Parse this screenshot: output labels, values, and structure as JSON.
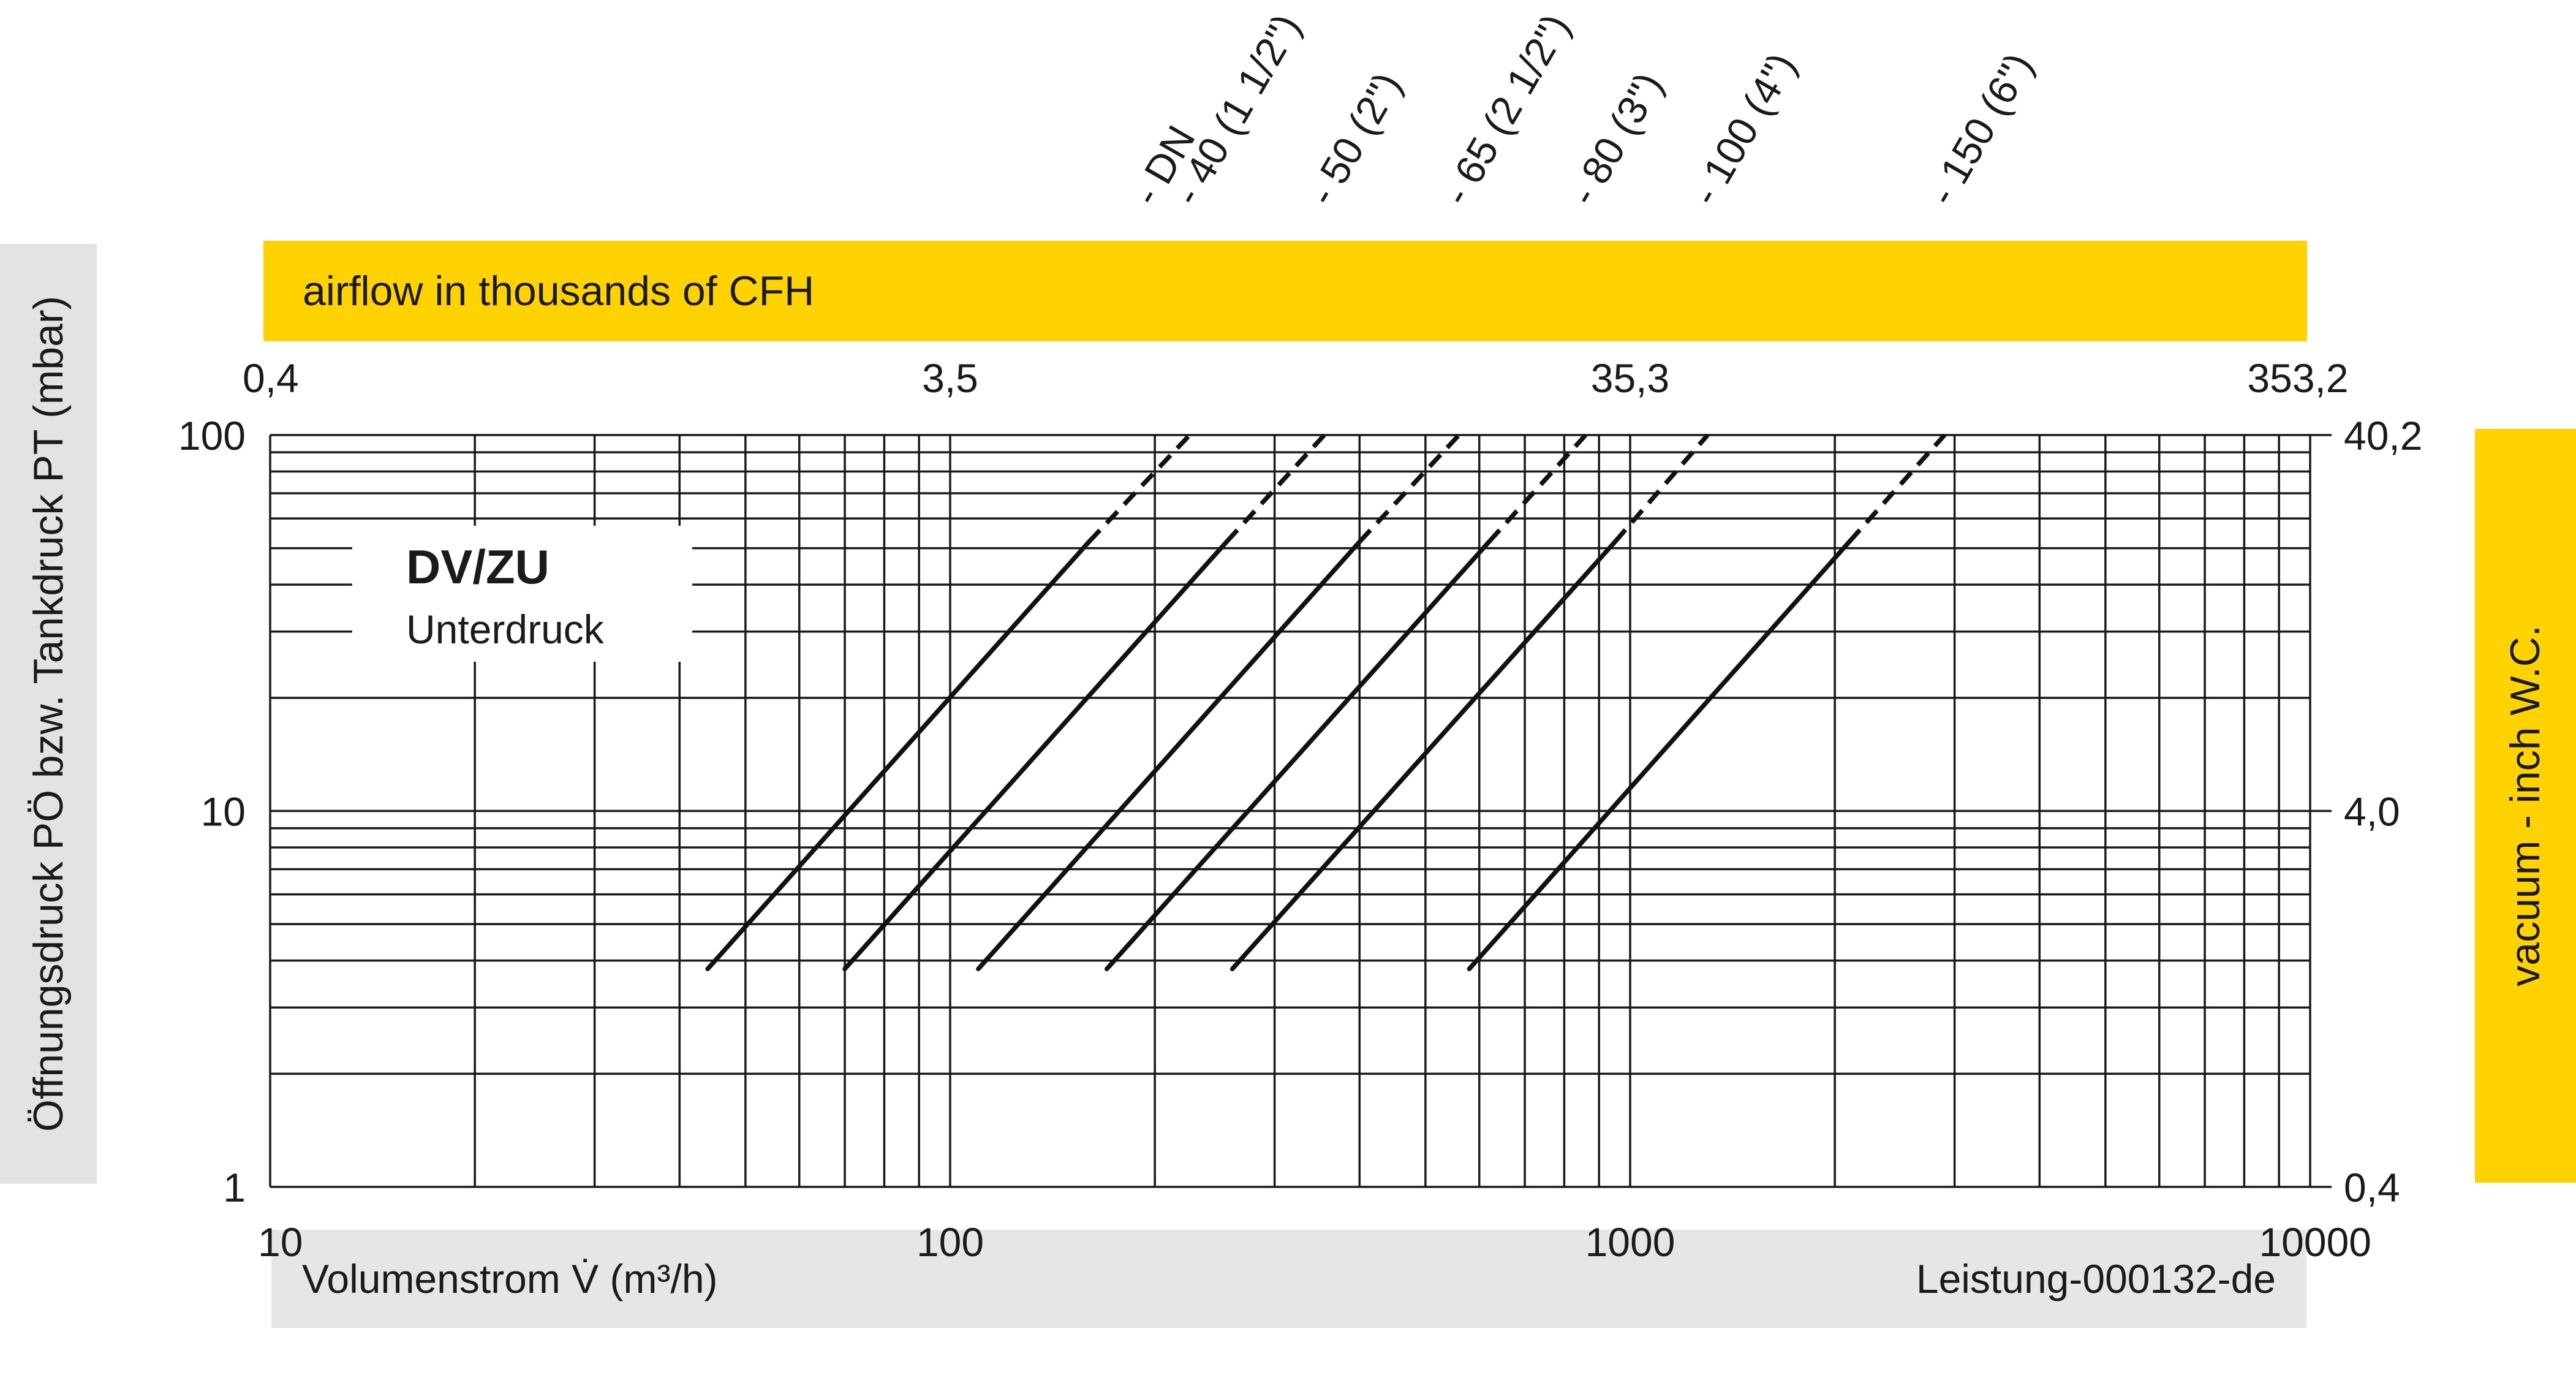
{
  "top_band_label": "airflow in thousands of CFH",
  "bottom_band_left": "Volumenstrom V̇  (m³/h)",
  "bottom_band_right": "Leistung-000132-de",
  "left_axis_label": "Öffnungsdruck PÖ bzw. Tankdruck PT (mbar)",
  "right_axis_label": "vacuum - inch W.C.",
  "box_title": "DV/ZU",
  "box_subtitle": "Unterdruck",
  "colors": {
    "accent_yellow": "#ffd200",
    "band_grey": "#e6e6e6",
    "ink": "#1a1a1a"
  },
  "chart_data": {
    "type": "line",
    "x_scale": "log",
    "y_scale": "log",
    "xlim": [
      10,
      10000
    ],
    "ylim": [
      1,
      100
    ],
    "x_ticks": [
      "10",
      "100",
      "1000",
      "10000"
    ],
    "y_ticks": [
      "1",
      "10",
      "100"
    ],
    "top_axis_ticks": [
      {
        "x": 10,
        "label": "0,4"
      },
      {
        "x": 100,
        "label": "3,5"
      },
      {
        "x": 1000,
        "label": "35,3"
      },
      {
        "x": 10000,
        "label": "353,2"
      }
    ],
    "right_axis_ticks": [
      {
        "y": 1,
        "label": "0,4"
      },
      {
        "y": 10,
        "label": "4,0"
      },
      {
        "y": 100,
        "label": "40,2"
      }
    ],
    "dn_header": "- DN",
    "series": [
      {
        "name": "- 40 (1 1/2\")",
        "solid": [
          [
            44,
            3.8
          ],
          [
            160,
            52
          ]
        ],
        "dashed": [
          [
            160,
            52
          ],
          [
            225,
            100
          ]
        ]
      },
      {
        "name": "- 50 (2\")",
        "solid": [
          [
            70,
            3.8
          ],
          [
            255,
            52
          ]
        ],
        "dashed": [
          [
            255,
            52
          ],
          [
            355,
            100
          ]
        ]
      },
      {
        "name": "- 65 (2 1/2\")",
        "solid": [
          [
            110,
            3.8
          ],
          [
            400,
            52
          ]
        ],
        "dashed": [
          [
            400,
            52
          ],
          [
            560,
            100
          ]
        ]
      },
      {
        "name": "- 80 (3\")",
        "solid": [
          [
            170,
            3.8
          ],
          [
            620,
            52
          ]
        ],
        "dashed": [
          [
            620,
            52
          ],
          [
            860,
            100
          ]
        ]
      },
      {
        "name": "- 100 (4\")",
        "solid": [
          [
            260,
            3.8
          ],
          [
            950,
            52
          ]
        ],
        "dashed": [
          [
            950,
            52
          ],
          [
            1300,
            100
          ]
        ]
      },
      {
        "name": "- 150 (6\")",
        "solid": [
          [
            580,
            3.8
          ],
          [
            2100,
            52
          ]
        ],
        "dashed": [
          [
            2100,
            52
          ],
          [
            2900,
            100
          ]
        ]
      }
    ],
    "grid": true
  }
}
